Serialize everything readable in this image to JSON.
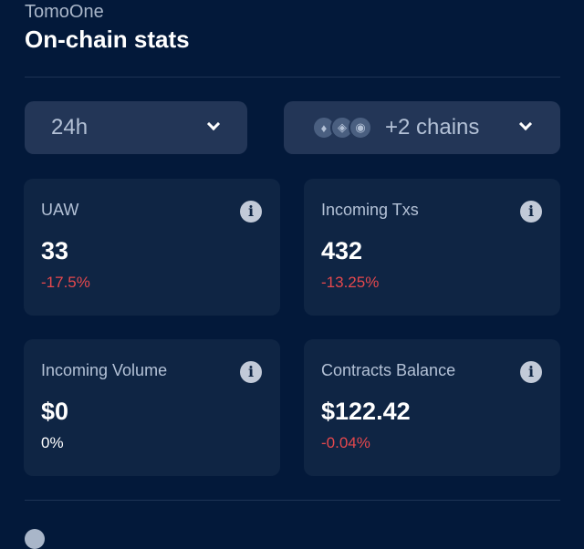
{
  "header": {
    "app_name": "TomoOne",
    "title": "On-chain stats"
  },
  "filters": {
    "period": "24h",
    "chains_label": "+2 chains",
    "chain_icons": [
      "ethereum-icon",
      "bnb-chain-icon",
      "chain-icon"
    ]
  },
  "cards": [
    {
      "label": "UAW",
      "value": "33",
      "change": "-17.5%",
      "trend": "negative"
    },
    {
      "label": "Incoming Txs",
      "value": "432",
      "change": "-13.25%",
      "trend": "negative"
    },
    {
      "label": "Incoming Volume",
      "value": "$0",
      "change": "0%",
      "trend": "neutral"
    },
    {
      "label": "Contracts Balance",
      "value": "$122.42",
      "change": "-0.04%",
      "trend": "negative"
    }
  ],
  "colors": {
    "background": "#03193a",
    "card": "#0f2544",
    "dropdown": "#233657",
    "negative": "#e5484d"
  }
}
